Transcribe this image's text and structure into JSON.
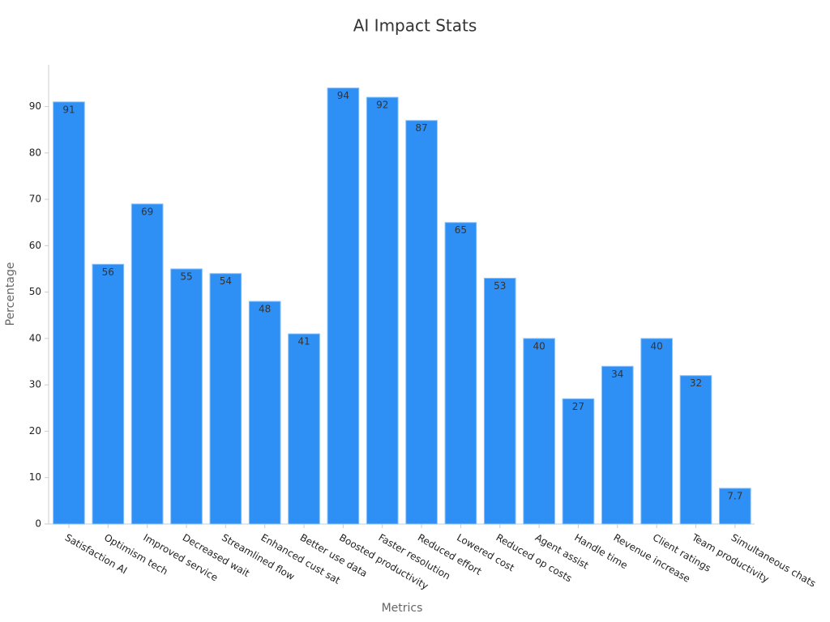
{
  "chart_data": {
    "type": "bar",
    "title": "AI Impact Stats",
    "x_label": "Metrics",
    "y_label": "Percentage",
    "categories": [
      "Satisfaction AI",
      "Optimism tech",
      "Improved service",
      "Decreased wait",
      "Streamlined flow",
      "Enhanced cust sat",
      "Better use data",
      "Boosted productivity",
      "Faster resolution",
      "Reduced effort",
      "Lowered cost",
      "Reduced op costs",
      "Agent assist",
      "Handle time",
      "Revenue increase",
      "Client ratings",
      "Team productivity",
      "Simultaneous chats"
    ],
    "values": [
      91,
      56,
      69,
      55,
      54,
      48,
      41,
      94,
      92,
      87,
      65,
      53,
      40,
      27,
      34,
      40,
      32,
      7.7
    ],
    "color": "#2e90f5",
    "ylim": [
      0,
      99
    ],
    "yticks": [
      0,
      10,
      20,
      30,
      40,
      50,
      60,
      70,
      80,
      90
    ],
    "grid": false
  }
}
